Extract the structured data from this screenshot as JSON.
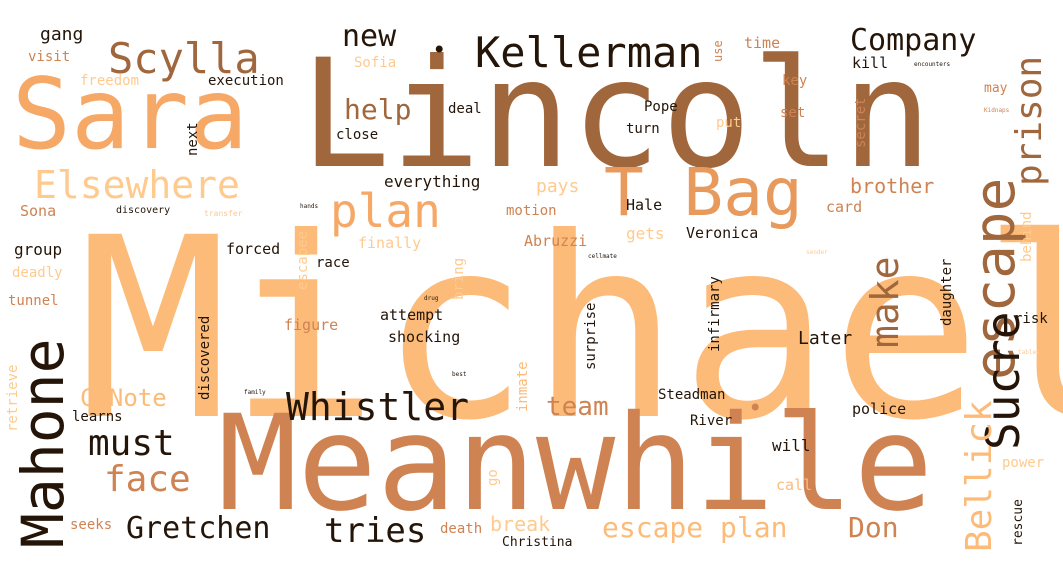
{
  "palette": {
    "dark": "#241508",
    "brown": "#a0663c",
    "tan": "#cf8352",
    "orange": "#e89a5c",
    "peach": "#f6a866",
    "light": "#fcbb79",
    "pale": "#ffca8e"
  },
  "words": [
    {
      "text": "Michael",
      "size": 250,
      "color": "light"
    },
    {
      "text": "Lincoln",
      "size": 150,
      "color": "brown"
    },
    {
      "text": "Meanwhile",
      "size": 132,
      "color": "tan"
    },
    {
      "text": "Sara",
      "size": 98,
      "color": "peach"
    },
    {
      "text": "T Bag",
      "size": 66,
      "color": "orange"
    },
    {
      "text": "Mahone",
      "size": 58,
      "color": "dark"
    },
    {
      "text": "escape",
      "size": 56,
      "color": "brown"
    },
    {
      "text": "plan",
      "size": 46,
      "color": "peach"
    },
    {
      "text": "Sucre",
      "size": 46,
      "color": "dark"
    },
    {
      "text": "Kellerman",
      "size": 42,
      "color": "dark"
    },
    {
      "text": "Scylla",
      "size": 42,
      "color": "brown"
    },
    {
      "text": "Elsewhere",
      "size": 38,
      "color": "pale"
    },
    {
      "text": "Whistler",
      "size": 38,
      "color": "dark"
    },
    {
      "text": "make",
      "size": 38,
      "color": "brown"
    },
    {
      "text": "Bellick",
      "size": 36,
      "color": "light"
    },
    {
      "text": "prison",
      "size": 36,
      "color": "brown"
    },
    {
      "text": "must",
      "size": 36,
      "color": "dark"
    },
    {
      "text": "face",
      "size": 36,
      "color": "tan"
    },
    {
      "text": "tries",
      "size": 34,
      "color": "dark"
    },
    {
      "text": "Gretchen",
      "size": 30,
      "color": "dark"
    },
    {
      "text": "Company",
      "size": 30,
      "color": "dark"
    },
    {
      "text": "new",
      "size": 30,
      "color": "dark"
    },
    {
      "text": "help",
      "size": 28,
      "color": "brown"
    },
    {
      "text": "escape plan",
      "size": 28,
      "color": "light"
    },
    {
      "text": "Don",
      "size": 28,
      "color": "tan"
    },
    {
      "text": "team",
      "size": 26,
      "color": "tan"
    },
    {
      "text": "C Note",
      "size": 24,
      "color": "light"
    },
    {
      "text": "break",
      "size": 20,
      "color": "pale"
    },
    {
      "text": "brother",
      "size": 20,
      "color": "tan"
    },
    {
      "text": "pays",
      "size": 18,
      "color": "pale"
    },
    {
      "text": "gets",
      "size": 16,
      "color": "pale"
    },
    {
      "text": "group",
      "size": 16,
      "color": "dark"
    },
    {
      "text": "Veronica",
      "size": 15,
      "color": "dark"
    },
    {
      "text": "Abruzzi",
      "size": 15,
      "color": "tan"
    },
    {
      "text": "Later",
      "size": 18,
      "color": "dark"
    },
    {
      "text": "everything",
      "size": 16,
      "color": "dark"
    },
    {
      "text": "forced",
      "size": 15,
      "color": "dark"
    },
    {
      "text": "finally",
      "size": 15,
      "color": "pale"
    },
    {
      "text": "attempt",
      "size": 15,
      "color": "dark"
    },
    {
      "text": "shocking",
      "size": 15,
      "color": "dark"
    },
    {
      "text": "figure",
      "size": 15,
      "color": "tan"
    },
    {
      "text": "race",
      "size": 14,
      "color": "dark"
    },
    {
      "text": "motion",
      "size": 14,
      "color": "tan"
    },
    {
      "text": "Hale",
      "size": 15,
      "color": "dark"
    },
    {
      "text": "card",
      "size": 15,
      "color": "tan"
    },
    {
      "text": "police",
      "size": 15,
      "color": "dark"
    },
    {
      "text": "will",
      "size": 16,
      "color": "dark"
    },
    {
      "text": "call",
      "size": 15,
      "color": "light"
    },
    {
      "text": "River",
      "size": 14,
      "color": "dark"
    },
    {
      "text": "Steadman",
      "size": 14,
      "color": "dark"
    },
    {
      "text": "Pope",
      "size": 14,
      "color": "dark"
    },
    {
      "text": "turn",
      "size": 14,
      "color": "dark"
    },
    {
      "text": "put",
      "size": 14,
      "color": "pale"
    },
    {
      "text": "set",
      "size": 14,
      "color": "tan"
    },
    {
      "text": "key",
      "size": 14,
      "color": "tan"
    },
    {
      "text": "time",
      "size": 15,
      "color": "tan"
    },
    {
      "text": "kill",
      "size": 15,
      "color": "dark"
    },
    {
      "text": "may",
      "size": 13,
      "color": "tan"
    },
    {
      "text": "risk",
      "size": 14,
      "color": "dark"
    },
    {
      "text": "gang",
      "size": 18,
      "color": "dark"
    },
    {
      "text": "visit",
      "size": 14,
      "color": "tan"
    },
    {
      "text": "freedom",
      "size": 14,
      "color": "pale"
    },
    {
      "text": "execution",
      "size": 14,
      "color": "dark"
    },
    {
      "text": "Sofia",
      "size": 14,
      "color": "pale"
    },
    {
      "text": "deal",
      "size": 14,
      "color": "dark"
    },
    {
      "text": "close",
      "size": 14,
      "color": "dark"
    },
    {
      "text": "Sona",
      "size": 15,
      "color": "tan"
    },
    {
      "text": "discovery",
      "size": 10,
      "color": "dark"
    },
    {
      "text": "transfer",
      "size": 8,
      "color": "pale"
    },
    {
      "text": "hands",
      "size": 6,
      "color": "dark"
    },
    {
      "text": "deadly",
      "size": 14,
      "color": "pale"
    },
    {
      "text": "tunnel",
      "size": 14,
      "color": "tan"
    },
    {
      "text": "learns",
      "size": 14,
      "color": "dark"
    },
    {
      "text": "seeks",
      "size": 14,
      "color": "tan"
    },
    {
      "text": "death",
      "size": 14,
      "color": "tan"
    },
    {
      "text": "Christina",
      "size": 13,
      "color": "dark"
    },
    {
      "text": "next",
      "size": 14,
      "color": "dark"
    },
    {
      "text": "use",
      "size": 12,
      "color": "tan"
    },
    {
      "text": "escapee",
      "size": 14,
      "color": "pale"
    },
    {
      "text": "bring",
      "size": 14,
      "color": "pale"
    },
    {
      "text": "discovered",
      "size": 14,
      "color": "dark"
    },
    {
      "text": "inmate",
      "size": 14,
      "color": "light"
    },
    {
      "text": "surprise",
      "size": 14,
      "color": "dark"
    },
    {
      "text": "infirmary",
      "size": 14,
      "color": "dark"
    },
    {
      "text": "daughter",
      "size": 14,
      "color": "dark"
    },
    {
      "text": "secret",
      "size": 14,
      "color": "tan"
    },
    {
      "text": "behind",
      "size": 14,
      "color": "pale"
    },
    {
      "text": "rescue",
      "size": 13,
      "color": "dark"
    },
    {
      "text": "power",
      "size": 14,
      "color": "pale"
    },
    {
      "text": "retrieve",
      "size": 14,
      "color": "pale"
    },
    {
      "text": "go",
      "size": 14,
      "color": "pale"
    },
    {
      "text": "encounters",
      "size": 6,
      "color": "dark"
    },
    {
      "text": "Kidnaps",
      "size": 6,
      "color": "tan"
    },
    {
      "text": "cellmate",
      "size": 6,
      "color": "dark"
    },
    {
      "text": "drug",
      "size": 6,
      "color": "dark"
    },
    {
      "text": "family",
      "size": 6,
      "color": "dark"
    },
    {
      "text": "best",
      "size": 6,
      "color": "dark"
    },
    {
      "text": "sender",
      "size": 6,
      "color": "pale"
    },
    {
      "text": "tables",
      "size": 6,
      "color": "pale"
    },
    {
      "text": "•",
      "size": 24,
      "color": "dark"
    },
    {
      "text": "•",
      "size": 24,
      "color": "tan"
    }
  ]
}
